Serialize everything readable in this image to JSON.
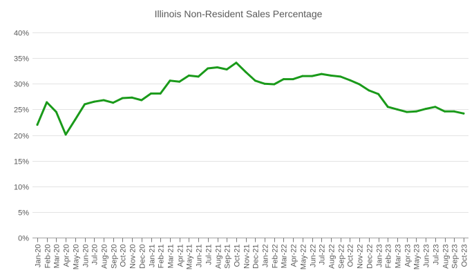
{
  "chart_data": {
    "type": "line",
    "title": "Illinois Non-Resident Sales Percentage",
    "xlabel": "",
    "ylabel": "",
    "ylim": [
      0,
      40
    ],
    "y_ticks": [
      "0%",
      "5%",
      "10%",
      "15%",
      "20%",
      "25%",
      "30%",
      "35%",
      "40%"
    ],
    "y_tick_values": [
      0,
      5,
      10,
      15,
      20,
      25,
      30,
      35,
      40
    ],
    "grid": true,
    "legend": "none",
    "categories": [
      "Jan-20",
      "Feb-20",
      "Mar-20",
      "Apr-20",
      "May-20",
      "Jun-20",
      "Jul-20",
      "Aug-20",
      "Sep-20",
      "Oct-20",
      "Nov-20",
      "Dec-20",
      "Jan-21",
      "Feb-21",
      "Mar-21",
      "Apr-21",
      "May-21",
      "Jun-21",
      "Jul-21",
      "Aug-21",
      "Sep-21",
      "Oct-21",
      "Nov-21",
      "Dec-21",
      "Jan-22",
      "Feb-22",
      "Mar-22",
      "Apr-22",
      "May-22",
      "Jun-22",
      "Jul-22",
      "Aug-22",
      "Sep-22",
      "Oct-22",
      "Nov-22",
      "Dec-22",
      "Jan-23",
      "Feb-23",
      "Mar-23",
      "Apr-23",
      "May-23",
      "Jun-23",
      "Jul-23",
      "Aug-23",
      "Sep-23",
      "Oct-23"
    ],
    "series": [
      {
        "name": "Non-Resident Sales %",
        "color": "#1a9a1a",
        "values": [
          22.0,
          26.4,
          24.5,
          20.1,
          23.0,
          26.0,
          26.5,
          26.8,
          26.3,
          27.2,
          27.3,
          26.8,
          28.1,
          28.1,
          30.6,
          30.4,
          31.6,
          31.4,
          33.0,
          33.2,
          32.8,
          34.1,
          32.3,
          30.6,
          30.0,
          29.9,
          30.9,
          30.9,
          31.5,
          31.5,
          31.9,
          31.6,
          31.4,
          30.7,
          29.9,
          28.7,
          28.0,
          25.5,
          25.0,
          24.5,
          24.6,
          25.1,
          25.5,
          24.6,
          24.6,
          24.2
        ]
      }
    ]
  }
}
